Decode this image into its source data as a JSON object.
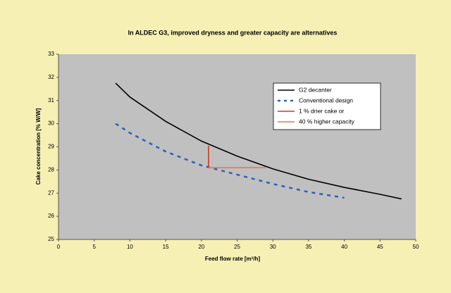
{
  "chart_data": {
    "type": "line",
    "title": "In ALDEC G3, improved dryness and greater capacity are alternatives",
    "xlabel": "Feed flow rate [m³/h]",
    "ylabel": "Cake concentration [% W/W]",
    "xlim": [
      0,
      50
    ],
    "xticks": [
      0,
      5,
      10,
      15,
      20,
      25,
      30,
      35,
      40,
      45,
      50
    ],
    "ylim": [
      25,
      33
    ],
    "yticks": [
      25,
      26,
      27,
      28,
      29,
      30,
      31,
      32,
      33
    ],
    "legend": "upper right",
    "series": [
      {
        "name": "G2 decanter",
        "color": "#000000",
        "linestyle": "solid",
        "x": [
          8,
          10,
          15,
          20,
          25,
          30,
          35,
          40,
          45,
          48
        ],
        "values": [
          31.75,
          31.15,
          30.1,
          29.25,
          28.6,
          28.05,
          27.6,
          27.25,
          26.95,
          26.75
        ]
      },
      {
        "name": "Conventional design",
        "color": "#2e5fb8",
        "linestyle": "dashed",
        "x": [
          8,
          10,
          15,
          20,
          25,
          30,
          35,
          40
        ],
        "values": [
          30.0,
          29.6,
          28.8,
          28.2,
          27.8,
          27.4,
          27.05,
          26.8
        ]
      },
      {
        "name": "1 % drier cake or",
        "color": "#cc3a1a",
        "linestyle": "solid",
        "x": [
          21,
          21
        ],
        "values": [
          29.05,
          28.1
        ]
      },
      {
        "name": "40 % higher capacity",
        "color": "#e07a50",
        "linestyle": "solid",
        "x": [
          21,
          29
        ],
        "values": [
          28.1,
          28.1
        ]
      }
    ]
  }
}
